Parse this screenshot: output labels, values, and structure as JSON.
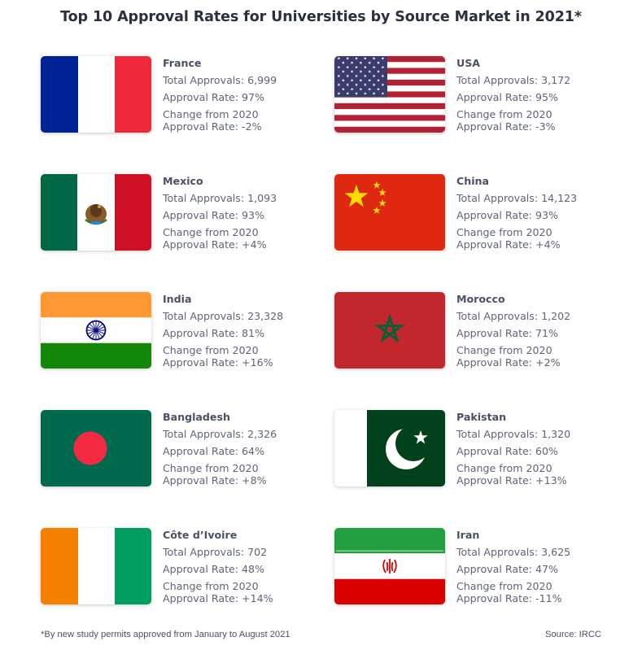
{
  "title": "Top 10 Approval Rates for Universities by Source Market in 2021*",
  "footnote": "*By new study permits approved from January to August 2021",
  "source": "Source: IRCC",
  "labels": {
    "total": "Total Approvals:",
    "rate": "Approval Rate:",
    "change_line1": "Change from 2020",
    "change_line2": "Approval Rate:"
  },
  "chart_data": {
    "type": "table",
    "title": "Top 10 Approval Rates for Universities by Source Market in 2021*",
    "columns": [
      "Country",
      "Total Approvals",
      "Approval Rate",
      "Change from 2020 Approval Rate"
    ],
    "rows": [
      {
        "country": "France",
        "total": "6,999",
        "rate": "97%",
        "change": "-2%",
        "flag_icon": "france-flag-icon"
      },
      {
        "country": "USA",
        "total": "3,172",
        "rate": "95%",
        "change": "-3%",
        "flag_icon": "usa-flag-icon"
      },
      {
        "country": "Mexico",
        "total": "1,093",
        "rate": "93%",
        "change": "+4%",
        "flag_icon": "mexico-flag-icon"
      },
      {
        "country": "China",
        "total": "14,123",
        "rate": "93%",
        "change": "+4%",
        "flag_icon": "china-flag-icon"
      },
      {
        "country": "India",
        "total": "23,328",
        "rate": "81%",
        "change": "+16%",
        "flag_icon": "india-flag-icon"
      },
      {
        "country": "Morocco",
        "total": "1,202",
        "rate": "71%",
        "change": "+2%",
        "flag_icon": "morocco-flag-icon"
      },
      {
        "country": "Bangladesh",
        "total": "2,326",
        "rate": "64%",
        "change": "+8%",
        "flag_icon": "bangladesh-flag-icon"
      },
      {
        "country": "Pakistan",
        "total": "1,320",
        "rate": "60%",
        "change": "+13%",
        "flag_icon": "pakistan-flag-icon"
      },
      {
        "country": "Côte d’Ivoire",
        "total": "702",
        "rate": "48%",
        "change": "+14%",
        "flag_icon": "cote-divoire-flag-icon"
      },
      {
        "country": "Iran",
        "total": "3,625",
        "rate": "47%",
        "change": "-11%",
        "flag_icon": "iran-flag-icon"
      }
    ]
  }
}
